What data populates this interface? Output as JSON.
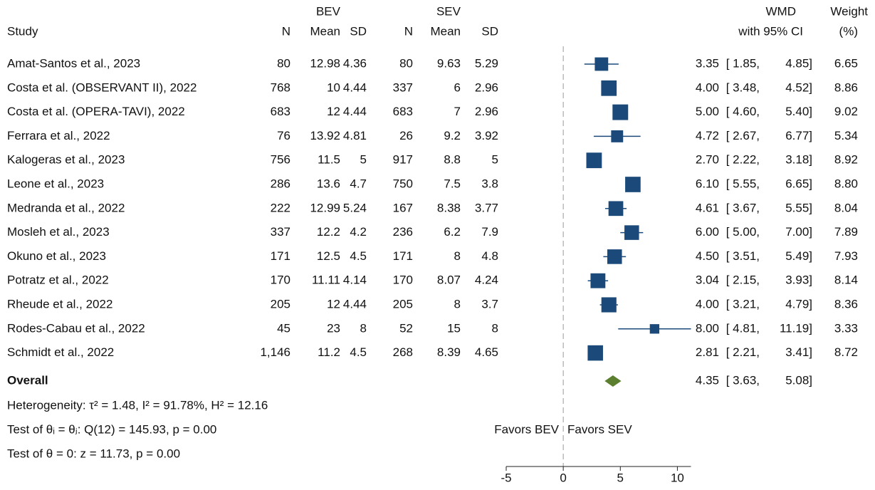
{
  "chart_data": {
    "type": "forest",
    "headers": {
      "study": "Study",
      "effect": [
        "WMD",
        "with 95% CI"
      ],
      "weight": [
        "Weight",
        "(%)"
      ]
    },
    "studies": [
      "Amat-Santos et al., 2023",
      "Costa et al. (OBSERVANT II), 2022",
      "Costa et al. (OPERA-TAVI), 2022",
      "Ferrara et al., 2022",
      "Kalogeras et al., 2023",
      "Leone et al., 2023",
      "Medranda et al., 2022",
      "Mosleh et al., 2023",
      "Okuno et al., 2023",
      "Potratz et al., 2022",
      "Rheude et al., 2022",
      "Rodes-Cabau et al., 2022",
      "Schmidt et al., 2022"
    ],
    "groups": [
      {
        "name": "BEV",
        "columns": [
          "N",
          "Mean",
          "SD"
        ],
        "n": [
          80,
          768,
          683,
          76,
          756,
          286,
          222,
          337,
          171,
          170,
          205,
          45,
          {
            "value": 1146,
            "label": "1,146"
          }
        ],
        "mean": [
          12.98,
          10,
          12,
          13.92,
          11.5,
          13.6,
          12.99,
          12.2,
          12.5,
          11.11,
          12,
          23,
          11.2
        ],
        "sd": [
          4.36,
          4.44,
          4.44,
          4.81,
          5,
          4.7,
          5.24,
          4.2,
          4.5,
          4.14,
          4.44,
          8,
          4.5
        ]
      },
      {
        "name": "SEV",
        "columns": [
          "N",
          "Mean",
          "SD"
        ],
        "n": [
          80,
          337,
          683,
          26,
          917,
          750,
          167,
          236,
          171,
          170,
          205,
          52,
          268
        ],
        "mean": [
          9.63,
          6,
          7,
          9.2,
          8.8,
          7.5,
          8.38,
          6.2,
          8,
          8.07,
          8,
          15,
          8.39
        ],
        "sd": [
          5.29,
          2.96,
          2.96,
          3.92,
          5,
          3.8,
          3.77,
          7.9,
          4.8,
          4.24,
          3.7,
          8,
          4.65
        ]
      }
    ],
    "effect": {
      "values": [
        3.35,
        4,
        5,
        4.72,
        2.7,
        6.1,
        4.61,
        6,
        4.5,
        3.04,
        4,
        8,
        2.81
      ],
      "value_labels": [
        "3.35",
        "4.00",
        "5.00",
        "4.72",
        "2.70",
        "6.10",
        "4.61",
        "6.00",
        "4.50",
        "3.04",
        "4.00",
        "8.00",
        "2.81"
      ]
    },
    "ci_low": {
      "values": [
        1.85,
        3.48,
        4.6,
        2.67,
        2.22,
        5.55,
        3.67,
        5,
        3.51,
        2.15,
        3.21,
        4.81,
        2.21
      ],
      "value_labels": [
        "[ 1.85,",
        "[ 3.48,",
        "[ 4.60,",
        "[ 2.67,",
        "[ 2.22,",
        "[ 5.55,",
        "[ 3.67,",
        "[ 5.00,",
        "[ 3.51,",
        "[ 2.15,",
        "[ 3.21,",
        "[ 4.81,",
        "[ 2.21,"
      ]
    },
    "ci_high": {
      "values": [
        4.85,
        4.52,
        5.4,
        6.77,
        3.18,
        6.65,
        5.55,
        7,
        5.49,
        3.93,
        4.79,
        11.19,
        3.41
      ],
      "value_labels": [
        "4.85]",
        "4.52]",
        "5.40]",
        "6.77]",
        "3.18]",
        "6.65]",
        "5.55]",
        "7.00]",
        "5.49]",
        "3.93]",
        "4.79]",
        "11.19]",
        "3.41]"
      ]
    },
    "weight": {
      "values": [
        6.65,
        8.86,
        9.02,
        5.34,
        8.92,
        8.8,
        8.04,
        7.89,
        7.93,
        8.14,
        8.36,
        3.33,
        8.72
      ],
      "value_labels": [
        "6.65",
        "8.86",
        "9.02",
        "5.34",
        "8.92",
        "8.80",
        "8.04",
        "7.89",
        "7.93",
        "8.14",
        "8.36",
        "3.33",
        "8.72"
      ]
    },
    "overall": {
      "label": "Overall",
      "value": 4.35,
      "low": 3.63,
      "high": 5.08,
      "low_label": "[ 3.63,",
      "high_label": "5.08]"
    },
    "notes": [
      "Heterogeneity: τ² = 1.48, I² = 91.78%, H² = 12.16",
      "Test of θᵢ = θⱼ: Q(12) = 145.93, p = 0.00",
      "Test of θ = 0: z = 11.73, p = 0.00"
    ],
    "favors": [
      "Favors BEV",
      "Favors SEV"
    ],
    "xlim": [
      -5,
      11.19
    ],
    "xticks": [
      -5,
      0,
      5,
      10
    ],
    "ref_line": 0,
    "marker_color": "#1b4a7a",
    "overall_color": "#5b7f2f"
  }
}
